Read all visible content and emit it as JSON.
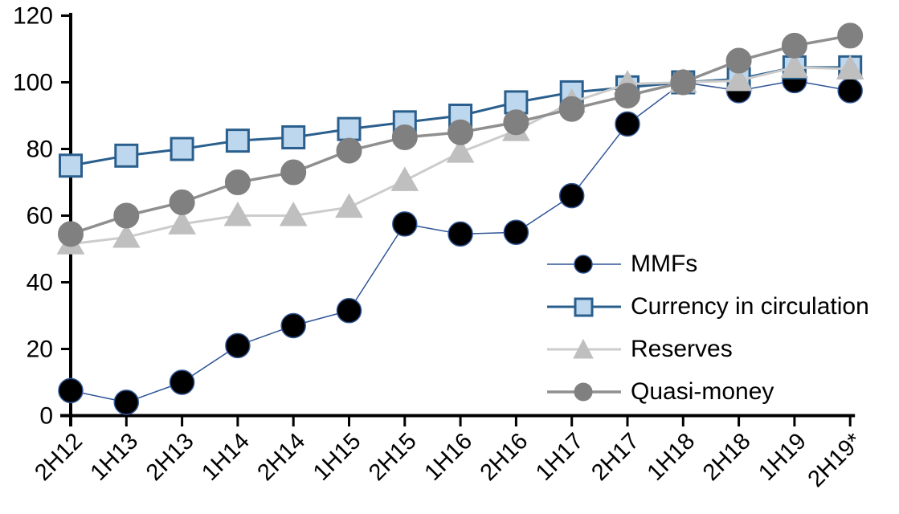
{
  "page": {
    "background": "#ffffff",
    "text_color": "#000000",
    "axis_color": "#000000"
  },
  "chart_data": {
    "type": "line",
    "title": "",
    "xlabel": "",
    "ylabel": "",
    "ylim": [
      0,
      120
    ],
    "y_ticks": [
      0,
      20,
      40,
      60,
      80,
      100,
      120
    ],
    "x_tick_rotation": -45,
    "grid": false,
    "legend_position": "inside-right",
    "categories": [
      "2H12",
      "1H13",
      "2H13",
      "1H14",
      "2H14",
      "1H15",
      "2H15",
      "1H16",
      "2H16",
      "1H17",
      "2H17",
      "1H18",
      "2H18",
      "1H19",
      "2H19*"
    ],
    "series": [
      {
        "name": "MMFs",
        "marker": "circle",
        "values": [
          7.5,
          4,
          10,
          21,
          27,
          31.5,
          57.5,
          54.5,
          55,
          66,
          87.5,
          100,
          97.5,
          100.5,
          97.5
        ],
        "line_color": "#2F5597",
        "line_width": 1.5,
        "marker_fill": "#000000",
        "marker_stroke": "#2F5597",
        "marker_stroke_width": 1.5,
        "marker_size": 30
      },
      {
        "name": "Currency in circulation",
        "marker": "square",
        "values": [
          75,
          78,
          80,
          82.5,
          83.5,
          86,
          88,
          90,
          94,
          97,
          98.5,
          100,
          101,
          104.5,
          104.5
        ],
        "line_color": "#2A5F8D",
        "line_width": 3,
        "marker_fill": "#BDD7EE",
        "marker_stroke": "#2A5F8D",
        "marker_stroke_width": 3,
        "marker_size": 27
      },
      {
        "name": "Reserves",
        "marker": "triangle",
        "values": [
          51.5,
          53.5,
          57.5,
          60,
          60,
          62.5,
          70.5,
          79,
          85.5,
          94,
          99.5,
          100,
          100.5,
          104.5,
          104
        ],
        "line_color": "#CCCCCC",
        "line_width": 3,
        "marker_fill": "#BFBFBF",
        "marker_stroke": "#BFBFBF",
        "marker_stroke_width": 1,
        "marker_size": 31
      },
      {
        "name": "Quasi-money",
        "marker": "circle",
        "values": [
          54.5,
          60,
          64,
          70,
          73,
          79.5,
          83.5,
          85,
          88,
          92,
          96,
          100,
          106.5,
          111,
          114
        ],
        "line_color": "#8F8F8F",
        "line_width": 3.5,
        "marker_fill": "#808080",
        "marker_stroke": "#808080",
        "marker_stroke_width": 1,
        "marker_size": 31
      }
    ]
  }
}
